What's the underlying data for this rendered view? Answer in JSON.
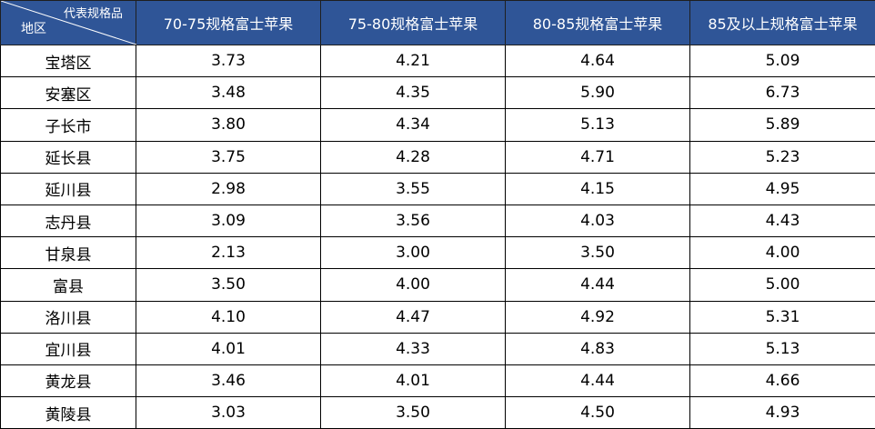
{
  "header": {
    "corner_top": "代表规格品",
    "corner_bottom": "地区",
    "columns": [
      "70-75规格富士苹果",
      "75-80规格富士苹果",
      "80-85规格富士苹果",
      "85及以上规格富士苹果"
    ]
  },
  "header_color": "#2f5597",
  "rows": [
    {
      "region": "宝塔区",
      "values": [
        "3.73",
        "4.21",
        "4.64",
        "5.09"
      ]
    },
    {
      "region": "安塞区",
      "values": [
        "3.48",
        "4.35",
        "5.90",
        "6.73"
      ]
    },
    {
      "region": "子长市",
      "values": [
        "3.80",
        "4.34",
        "5.13",
        "5.89"
      ]
    },
    {
      "region": "延长县",
      "values": [
        "3.75",
        "4.28",
        "4.71",
        "5.23"
      ]
    },
    {
      "region": "延川县",
      "values": [
        "2.98",
        "3.55",
        "4.15",
        "4.95"
      ]
    },
    {
      "region": "志丹县",
      "values": [
        "3.09",
        "3.56",
        "4.03",
        "4.43"
      ]
    },
    {
      "region": "甘泉县",
      "values": [
        "2.13",
        "3.00",
        "3.50",
        "4.00"
      ]
    },
    {
      "region": "富县",
      "values": [
        "3.50",
        "4.00",
        "4.44",
        "5.00"
      ]
    },
    {
      "region": "洛川县",
      "values": [
        "4.10",
        "4.47",
        "4.92",
        "5.31"
      ]
    },
    {
      "region": "宜川县",
      "values": [
        "4.01",
        "4.33",
        "4.83",
        "5.13"
      ]
    },
    {
      "region": "黄龙县",
      "values": [
        "3.46",
        "4.01",
        "4.44",
        "4.66"
      ]
    },
    {
      "region": "黄陵县",
      "values": [
        "3.03",
        "3.50",
        "4.50",
        "4.93"
      ]
    }
  ]
}
